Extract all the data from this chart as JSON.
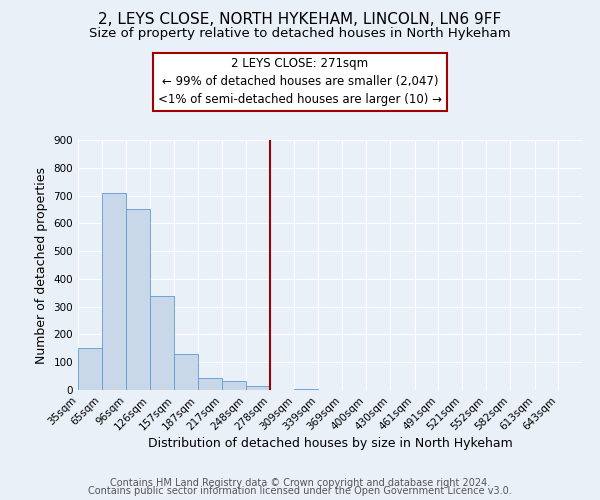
{
  "title": "2, LEYS CLOSE, NORTH HYKEHAM, LINCOLN, LN6 9FF",
  "subtitle": "Size of property relative to detached houses in North Hykeham",
  "xlabel": "Distribution of detached houses by size in North Hykeham",
  "ylabel": "Number of detached properties",
  "footer_line1": "Contains HM Land Registry data © Crown copyright and database right 2024.",
  "footer_line2": "Contains public sector information licensed under the Open Government Licence v3.0.",
  "annotation_title": "2 LEYS CLOSE: 271sqm",
  "annotation_line1": "← 99% of detached houses are smaller (2,047)",
  "annotation_line2": "<1% of semi-detached houses are larger (10) →",
  "bar_color": "#c8d8e8",
  "bar_edge_color": "#5b9bd5",
  "vline_color": "#a00000",
  "annotation_box_edge_color": "#a00000",
  "categories": [
    "35sqm",
    "65sqm",
    "96sqm",
    "126sqm",
    "157sqm",
    "187sqm",
    "217sqm",
    "248sqm",
    "278sqm",
    "309sqm",
    "339sqm",
    "369sqm",
    "400sqm",
    "430sqm",
    "461sqm",
    "491sqm",
    "521sqm",
    "552sqm",
    "582sqm",
    "613sqm",
    "643sqm"
  ],
  "bin_edges": [
    35,
    65,
    96,
    126,
    157,
    187,
    217,
    248,
    278,
    309,
    339,
    369,
    400,
    430,
    461,
    491,
    521,
    552,
    582,
    613,
    643
  ],
  "bar_heights": [
    152,
    710,
    650,
    338,
    130,
    43,
    33,
    15,
    0,
    5,
    0,
    0,
    0,
    0,
    0,
    0,
    0,
    0,
    0,
    0,
    0
  ],
  "ylim": [
    0,
    900
  ],
  "yticks": [
    0,
    100,
    200,
    300,
    400,
    500,
    600,
    700,
    800,
    900
  ],
  "bg_color": "#eaf0f8",
  "plot_bg_color": "#eaf0f8",
  "grid_color": "#ffffff",
  "title_fontsize": 11,
  "subtitle_fontsize": 9.5,
  "axis_label_fontsize": 9,
  "tick_fontsize": 7.5,
  "footer_fontsize": 7,
  "annotation_fontsize": 8.5,
  "vline_x": 278
}
